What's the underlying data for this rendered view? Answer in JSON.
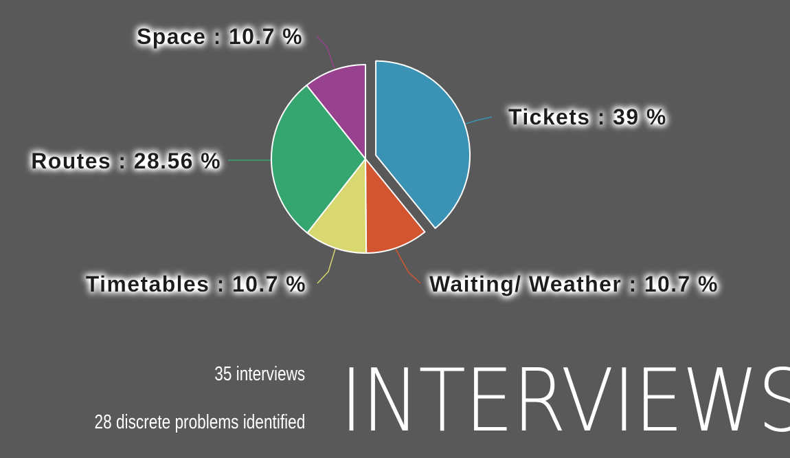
{
  "chart_data": {
    "type": "pie",
    "slices": [
      {
        "label": "Tickets",
        "value": 39,
        "display": "Tickets : 39 %",
        "color": "#3a93b5",
        "exploded": true
      },
      {
        "label": "Waiting/ Weather",
        "value": 10.7,
        "display": "Waiting/ Weather : 10.7 %",
        "color": "#d25530"
      },
      {
        "label": "Timetables",
        "value": 10.7,
        "display": "Timetables : 10.7 %",
        "color": "#d8d770"
      },
      {
        "label": "Routes",
        "value": 28.56,
        "display": "Routes : 28.56 %",
        "color": "#35a66f"
      },
      {
        "label": "Space",
        "value": 10.7,
        "display": "Space : 10.7 %",
        "color": "#98418f"
      }
    ],
    "start_angle": "12 o'clock",
    "direction": "clockwise"
  },
  "stats": {
    "interviews": "35 interviews",
    "problems": "28 discrete problems identified"
  },
  "headline": "INTERVIEWS",
  "colors": {
    "background": "#595959",
    "slice_border": "#ffffff",
    "label_text": "#1a1a1a"
  }
}
